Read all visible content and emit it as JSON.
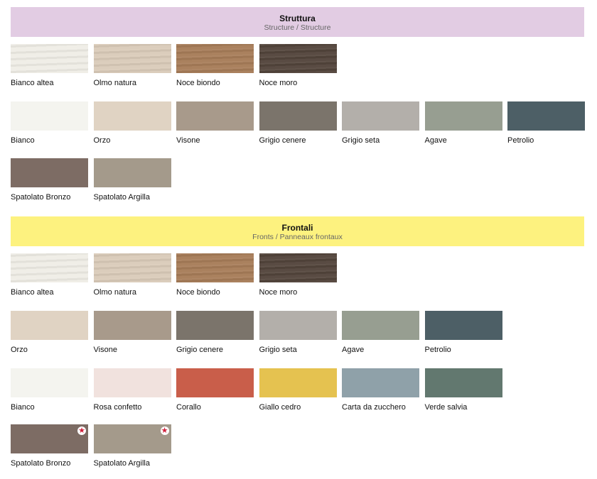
{
  "sections": [
    {
      "title": "Struttura",
      "subtitle": "Structure / Structure",
      "bg": "#e2cce3",
      "rows": [
        [
          {
            "label": "Bianco altea",
            "color": "#efede6",
            "wood": true
          },
          {
            "label": "Olmo natura",
            "color": "#dacbb9",
            "wood": true
          },
          {
            "label": "Noce biondo",
            "color": "#a77c58",
            "wood": true
          },
          {
            "label": "Noce moro",
            "color": "#52443b",
            "wood": true
          }
        ],
        [
          {
            "label": "Bianco",
            "color": "#f4f4ef"
          },
          {
            "label": "Orzo",
            "color": "#e0d3c3"
          },
          {
            "label": "Visone",
            "color": "#a89a8b"
          },
          {
            "label": "Grigio cenere",
            "color": "#7b746b"
          },
          {
            "label": "Grigio seta",
            "color": "#b3afaa"
          },
          {
            "label": "Agave",
            "color": "#979e91"
          },
          {
            "label": "Petrolio",
            "color": "#4d5f66"
          }
        ],
        [
          {
            "label": "Spatolato Bronzo",
            "color": "#7d6c64"
          },
          {
            "label": "Spatolato Argilla",
            "color": "#a49a8b"
          }
        ]
      ]
    },
    {
      "title": "Frontali",
      "subtitle": "Fronts / Panneaux frontaux",
      "bg": "#fdf27f",
      "rows": [
        [
          {
            "label": "Bianco altea",
            "color": "#efede6",
            "wood": true
          },
          {
            "label": "Olmo natura",
            "color": "#dacbb9",
            "wood": true
          },
          {
            "label": "Noce biondo",
            "color": "#a77c58",
            "wood": true
          },
          {
            "label": "Noce moro",
            "color": "#52443b",
            "wood": true
          }
        ],
        [
          {
            "label": "Orzo",
            "color": "#e0d3c3"
          },
          {
            "label": "Visone",
            "color": "#a89a8b"
          },
          {
            "label": "Grigio cenere",
            "color": "#7b746b"
          },
          {
            "label": "Grigio seta",
            "color": "#b3afaa"
          },
          {
            "label": "Agave",
            "color": "#979e91"
          },
          {
            "label": "Petrolio",
            "color": "#4d5f66"
          }
        ],
        [
          {
            "label": "Bianco",
            "color": "#f4f4ef"
          },
          {
            "label": "Rosa confetto",
            "color": "#f1e2de"
          },
          {
            "label": "Corallo",
            "color": "#c95e4a"
          },
          {
            "label": "Giallo cedro",
            "color": "#e5c250"
          },
          {
            "label": "Carta da zucchero",
            "color": "#8fa1a9"
          },
          {
            "label": "Verde salvia",
            "color": "#62786f"
          }
        ],
        [
          {
            "label": "Spatolato Bronzo",
            "color": "#7d6c64",
            "star": true
          },
          {
            "label": "Spatolato Argilla",
            "color": "#a49a8b",
            "star": true
          }
        ]
      ]
    }
  ]
}
